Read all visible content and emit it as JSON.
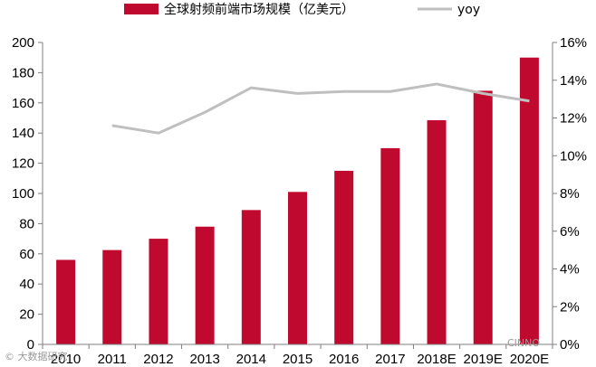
{
  "chart_data": {
    "type": "bar",
    "categories": [
      "2010",
      "2011",
      "2012",
      "2013",
      "2014",
      "2015",
      "2016",
      "2017",
      "2018E",
      "2019E",
      "2020E"
    ],
    "series": [
      {
        "name": "全球射频前端市场规模（亿美元）",
        "type": "bar",
        "axis": "left",
        "color": "#c0092e",
        "values": [
          56,
          62.5,
          70,
          78,
          89,
          101,
          115,
          130,
          148.5,
          168,
          190
        ]
      },
      {
        "name": "yoy",
        "type": "line",
        "axis": "right",
        "color": "#bfbfbf",
        "values": [
          null,
          11.6,
          11.2,
          12.3,
          13.6,
          13.3,
          13.4,
          13.4,
          13.8,
          13.3,
          12.9
        ]
      }
    ],
    "y_left": {
      "ylim": [
        0,
        200
      ],
      "ticks": [
        "0",
        "20",
        "40",
        "60",
        "80",
        "100",
        "120",
        "140",
        "160",
        "180",
        "200"
      ]
    },
    "y_right": {
      "ylim": [
        0,
        16
      ],
      "unit": "%",
      "ticks": [
        "0%",
        "2%",
        "4%",
        "6%",
        "8%",
        "10%",
        "12%",
        "14%",
        "16%"
      ]
    },
    "grid": false,
    "legend_position": "top"
  },
  "watermark": {
    "left": "© 大数据研究",
    "right": "CINNO"
  }
}
